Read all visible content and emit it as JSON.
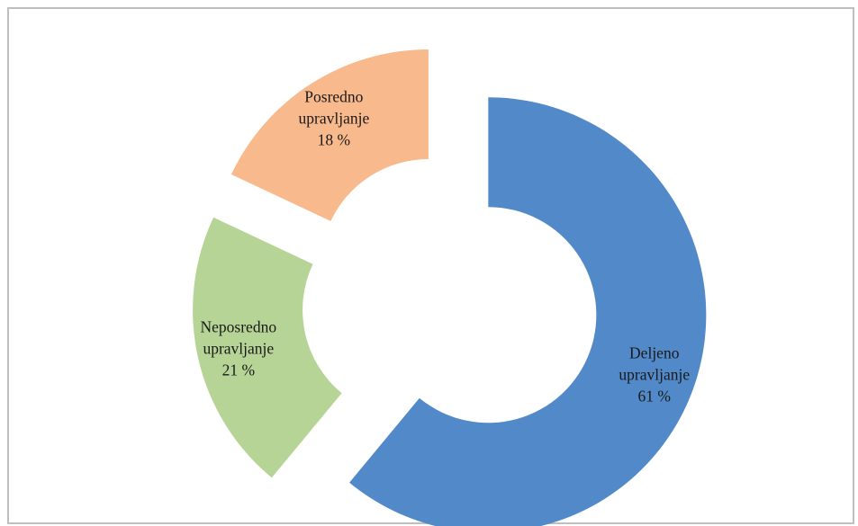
{
  "chart_data": {
    "type": "pie",
    "variant": "exploded-donut",
    "title": "",
    "legend": "none",
    "series": [
      {
        "name": "",
        "points": [
          {
            "label_lines": [
              "Deljeno",
              "upravljanje",
              "61 %"
            ],
            "value": 61,
            "color": "#5289C8"
          },
          {
            "label_lines": [
              "Neposredno",
              "upravljanje",
              "21 %"
            ],
            "value": 21,
            "color": "#B6D496"
          },
          {
            "label_lines": [
              "Posredno",
              "upravljanje",
              "18 %"
            ],
            "value": 18,
            "color": "#F8B98C"
          }
        ]
      }
    ]
  }
}
